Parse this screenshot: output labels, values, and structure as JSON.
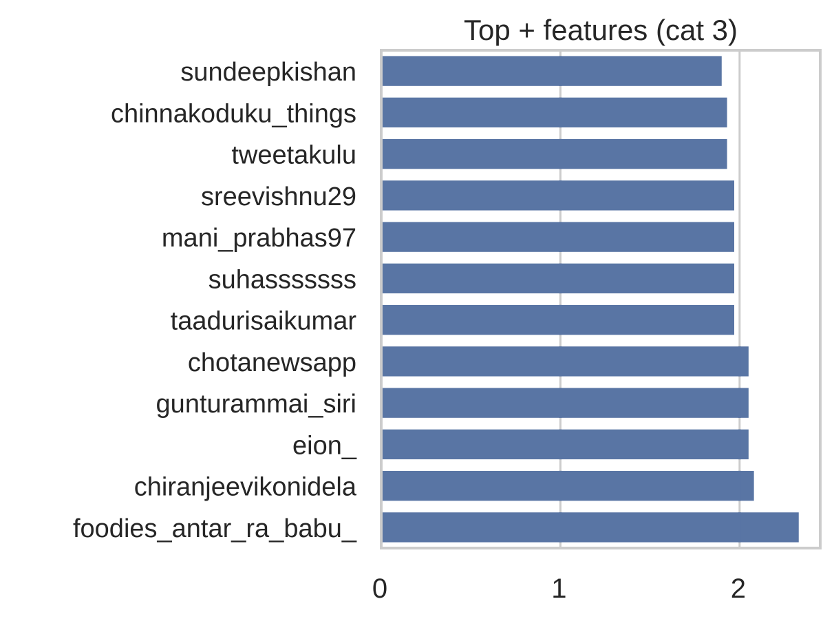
{
  "chart_data": {
    "type": "bar",
    "orientation": "horizontal",
    "title": "Top + features (cat 3)",
    "xlabel": "",
    "ylabel": "",
    "categories": [
      "sundeepkishan",
      "chinnakoduku_things",
      "tweetakulu",
      "sreevishnu29",
      "mani_prabhas97",
      "suhasssssss",
      "taadurisaikumar",
      "chotanewsapp",
      "gunturammai_siri",
      "eion_",
      "chiranjeevikonidela",
      "foodies_antar_ra_babu_"
    ],
    "values": [
      1.9,
      1.93,
      1.93,
      1.97,
      1.97,
      1.97,
      1.97,
      2.05,
      2.05,
      2.05,
      2.08,
      2.33
    ],
    "xlim": [
      0,
      2.45
    ],
    "xticks": [
      0,
      1,
      2
    ],
    "xtick_labels": [
      "0",
      "1",
      "2"
    ],
    "grid": "vertical",
    "bar_color": "#5975a4",
    "grid_color": "#cccccc",
    "frame_color": "#cccccc",
    "text_color": "#262626"
  }
}
